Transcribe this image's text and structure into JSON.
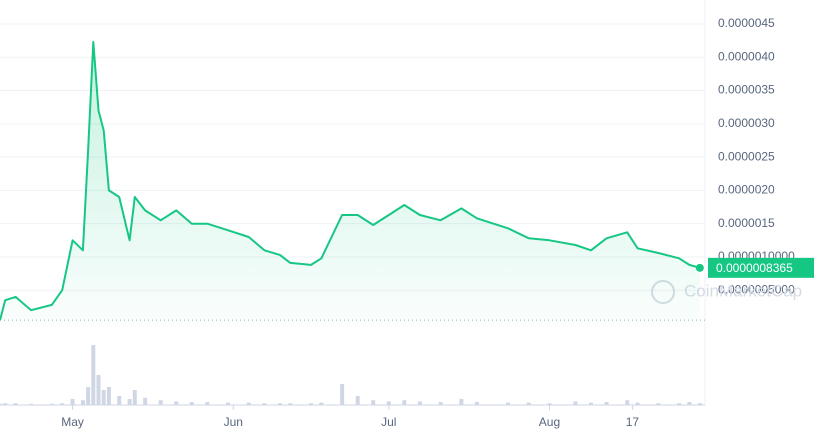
{
  "chart_data": {
    "type": "line",
    "x": [
      0,
      1,
      3,
      6,
      10,
      12,
      14,
      16,
      17,
      18,
      19,
      20,
      21,
      23,
      25,
      26,
      28,
      31,
      34,
      37,
      40,
      44,
      48,
      51,
      54,
      56,
      60,
      62,
      66,
      69,
      72,
      75,
      78,
      81,
      85,
      89,
      92,
      98,
      102,
      106,
      111,
      114,
      117,
      121,
      123,
      127,
      131,
      133,
      135
    ],
    "series": [
      {
        "name": "Price",
        "color": "#16c784",
        "values": [
          5e-08,
          3.5e-07,
          4e-07,
          2e-07,
          2.8e-07,
          5e-07,
          1.25e-06,
          1.1e-06,
          2.6e-06,
          4.23e-06,
          3.2e-06,
          2.9e-06,
          2e-06,
          1.9e-06,
          1.25e-06,
          1.9e-06,
          1.7e-06,
          1.55e-06,
          1.7e-06,
          1.5e-06,
          1.5e-06,
          1.4e-06,
          1.3e-06,
          1.1e-06,
          1.03e-06,
          9.1e-07,
          8.8e-07,
          9.8e-07,
          1.63e-06,
          1.63e-06,
          1.48e-06,
          1.63e-06,
          1.78e-06,
          1.63e-06,
          1.55e-06,
          1.73e-06,
          1.58e-06,
          1.43e-06,
          1.28e-06,
          1.25e-06,
          1.18e-06,
          1.1e-06,
          1.28e-06,
          1.37e-06,
          1.13e-06,
          1.06e-06,
          9.8e-07,
          8.8e-07,
          8.365e-07
        ]
      }
    ],
    "volume": {
      "color": "#cfd6e4",
      "ylim": [
        0,
        100
      ],
      "values": [
        2,
        3,
        3,
        2,
        2,
        3,
        10,
        8,
        30,
        100,
        50,
        25,
        30,
        15,
        10,
        25,
        12,
        8,
        6,
        5,
        5,
        4,
        4,
        3,
        3,
        3,
        3,
        4,
        35,
        15,
        8,
        6,
        8,
        6,
        5,
        10,
        5,
        4,
        4,
        3,
        6,
        4,
        5,
        8,
        4,
        3,
        3,
        5,
        3
      ]
    },
    "xlim": [
      0,
      136
    ],
    "xticks": [
      {
        "value": 14,
        "label": "May"
      },
      {
        "value": 45,
        "label": "Jun"
      },
      {
        "value": 75,
        "label": "Jul"
      },
      {
        "value": 106,
        "label": "Aug"
      },
      {
        "value": 122,
        "label": "17"
      }
    ],
    "ylim": [
      0,
      4.5e-06
    ],
    "yticks": [
      {
        "value": 5e-07,
        "label": "0.0000005000"
      },
      {
        "value": 1e-06,
        "label": "0.0000010000"
      },
      {
        "value": 1.5e-06,
        "label": "0.0000015"
      },
      {
        "value": 2e-06,
        "label": "0.0000020"
      },
      {
        "value": 2.5e-06,
        "label": "0.0000025"
      },
      {
        "value": 3e-06,
        "label": "0.0000030"
      },
      {
        "value": 3.5e-06,
        "label": "0.0000035"
      },
      {
        "value": 4e-06,
        "label": "0.0000040"
      },
      {
        "value": 4.5e-06,
        "label": "0.0000045"
      }
    ],
    "last_price": {
      "value": 8.365e-07,
      "label": "0.0000008365"
    },
    "watermark": "CoinMarketCap",
    "grid": true
  }
}
